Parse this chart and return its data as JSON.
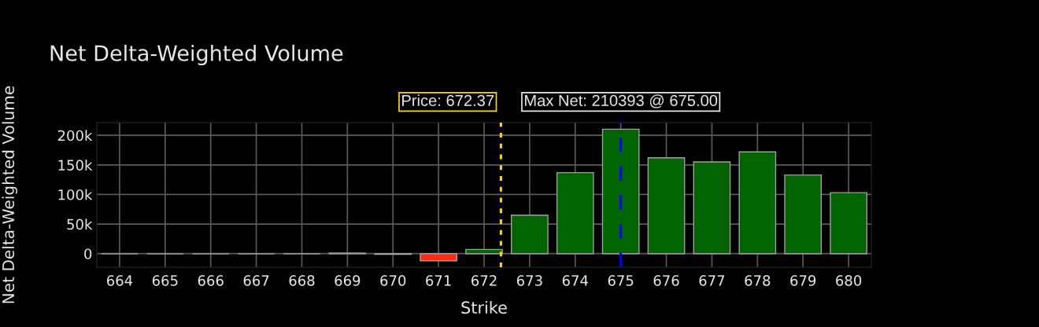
{
  "chart_data": {
    "type": "bar",
    "title": "Net Delta-Weighted Volume",
    "xlabel": "Strike",
    "ylabel": "Net Delta-Weighted Volume",
    "x": [
      664,
      665,
      666,
      667,
      668,
      669,
      670,
      671,
      672,
      673,
      674,
      675,
      676,
      677,
      678,
      679,
      680
    ],
    "values": [
      0,
      0,
      0,
      0,
      0,
      1000,
      -1000,
      -12000,
      7000,
      65000,
      137000,
      210393,
      162000,
      155000,
      172000,
      133000,
      103000
    ],
    "colors": [
      "#a0a0a0",
      "#a0a0a0",
      "#a0a0a0",
      "#a0a0a0",
      "#a0a0a0",
      "#006400",
      "#ff2a14",
      "#ff2a14",
      "#006400",
      "#006400",
      "#006400",
      "#006400",
      "#006400",
      "#006400",
      "#006400",
      "#006400",
      "#006400"
    ],
    "xlim": [
      663.5,
      680.5
    ],
    "xticks": [
      664,
      665,
      666,
      667,
      668,
      669,
      670,
      671,
      672,
      673,
      674,
      675,
      676,
      677,
      678,
      679,
      680
    ],
    "ylim": [
      -23000,
      221500
    ],
    "yticks": [
      0,
      {
        "value": 50000,
        "label": "50k"
      },
      {
        "value": 100000,
        "label": "100k"
      },
      {
        "value": 150000,
        "label": "150k"
      },
      {
        "value": 200000,
        "label": "200k"
      }
    ],
    "grid": true,
    "ref_lines": [
      {
        "axis": "x",
        "value": 672.37,
        "label": "Price: 672.37",
        "color": "#ffd700",
        "line_style": "dotted"
      },
      {
        "axis": "x",
        "value": 675,
        "label": "Max Net: 210393 @ 675.00",
        "color": "#0000ff",
        "line_style": "dashed"
      }
    ]
  }
}
